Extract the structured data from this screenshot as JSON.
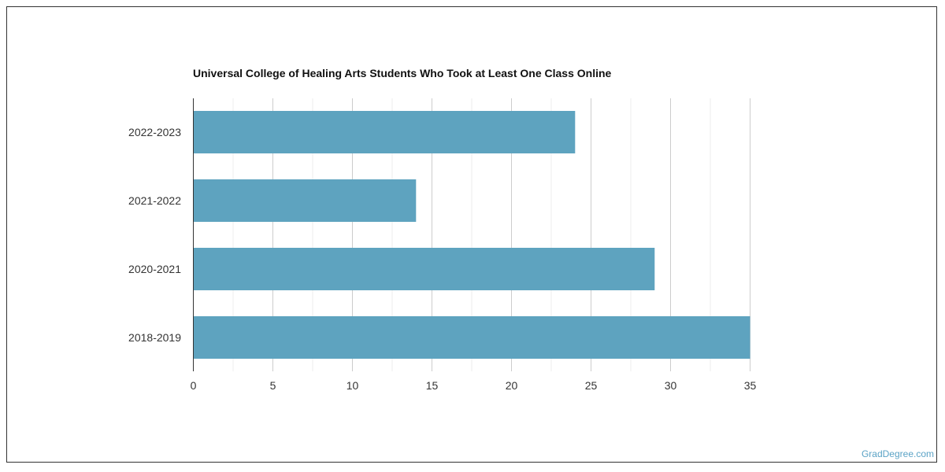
{
  "chart_data": {
    "type": "bar",
    "orientation": "horizontal",
    "title": "Universal College of Healing Arts Students Who Took at Least One Class Online",
    "categories": [
      "2022-2023",
      "2021-2022",
      "2020-2021",
      "2018-2019"
    ],
    "values": [
      24,
      14,
      29,
      35
    ],
    "xlabel": "",
    "ylabel": "",
    "xlim": [
      0,
      35
    ],
    "xticks": [
      0,
      5,
      10,
      15,
      20,
      25,
      30,
      35
    ],
    "grid": true,
    "legend": "none",
    "bar_color": "#5ea3bf"
  },
  "footer": {
    "watermark": "GradDegree.com"
  },
  "colors": {
    "bar": "#5ea3bf",
    "watermark": "#5ba3c6",
    "grid_major": "#cccccc",
    "grid_minor": "#eeeeee",
    "axis": "#333333"
  }
}
